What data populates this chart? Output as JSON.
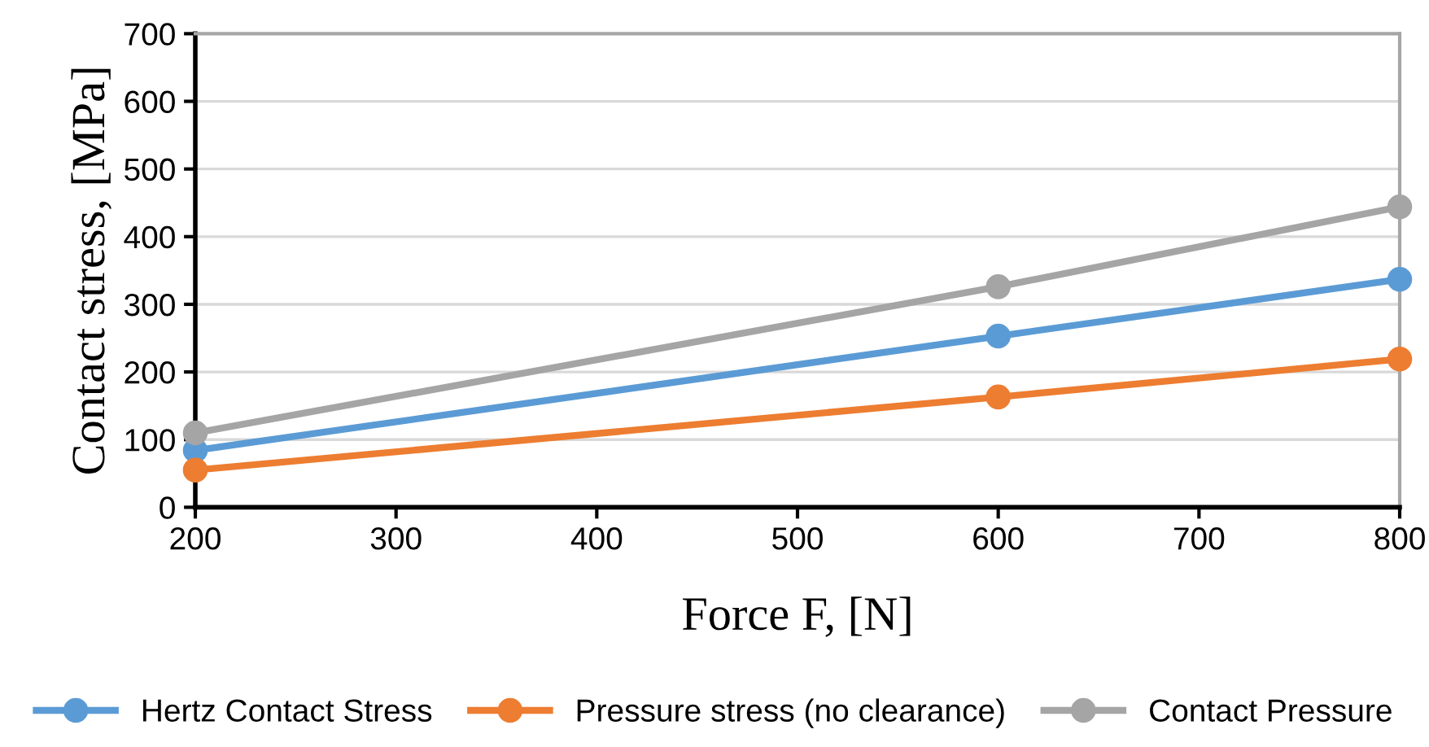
{
  "chart_data": {
    "type": "line",
    "xlabel": "Force F, [N]",
    "ylabel": "Contact stress, [MPa]",
    "x": [
      200,
      600,
      800
    ],
    "series": [
      {
        "name": "Hertz Contact Stress",
        "color": "#5b9bd5",
        "values": [
          84,
          253,
          337
        ]
      },
      {
        "name": "Pressure stress (no clearance)",
        "color": "#ed7d31",
        "values": [
          55,
          163,
          219
        ]
      },
      {
        "name": "Contact Pressure",
        "color": "#a5a5a5",
        "values": [
          110,
          326,
          444
        ]
      }
    ],
    "xlim": [
      200,
      800
    ],
    "xticks": [
      200,
      300,
      400,
      500,
      600,
      700,
      800
    ],
    "ylim": [
      0,
      700
    ],
    "yticks": [
      0,
      100,
      200,
      300,
      400,
      500,
      600,
      700
    ],
    "grid": "y",
    "legend": "bottom",
    "marker": "circle",
    "line_style": "solid"
  }
}
